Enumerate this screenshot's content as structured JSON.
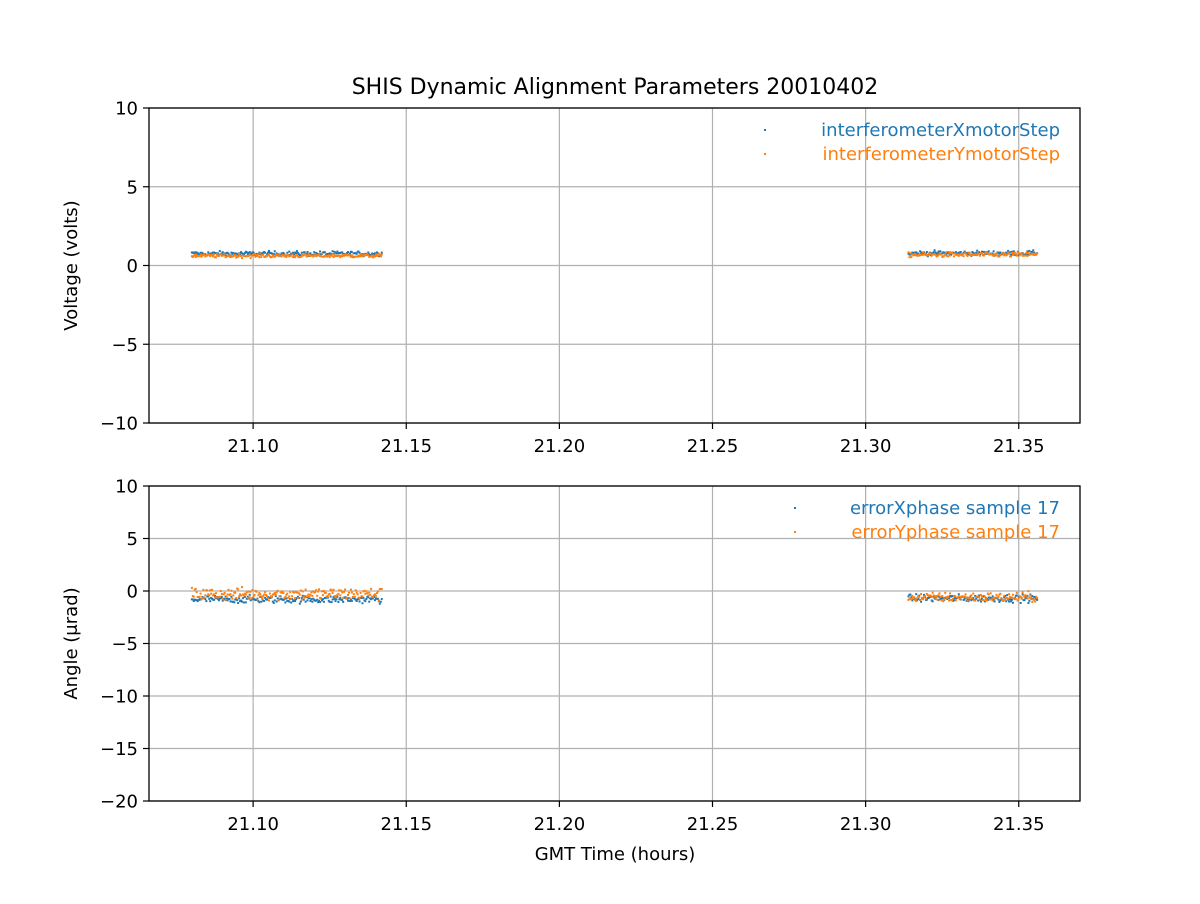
{
  "figure": {
    "title": "SHIS Dynamic Alignment Parameters 20010402"
  },
  "chart_data": [
    {
      "type": "scatter",
      "ylabel": "Voltage (volts)",
      "xlabel": "",
      "xlim": [
        21.066,
        21.37
      ],
      "ylim": [
        -10,
        10
      ],
      "xticks": [
        21.1,
        21.15,
        21.2,
        21.25,
        21.3,
        21.35
      ],
      "xtick_labels": [
        "21.10",
        "21.15",
        "21.20",
        "21.25",
        "21.30",
        "21.35"
      ],
      "yticks": [
        10,
        5,
        0,
        -5,
        -10
      ],
      "ytick_labels": [
        "10",
        "5",
        "0",
        "−5",
        "−10"
      ],
      "grid": true,
      "legend_position": "top-right",
      "series": [
        {
          "name": "interferometerXmotorStep",
          "color": "#1f77b4",
          "segments": [
            {
              "x_start": 21.08,
              "x_end": 21.142,
              "y_mean": 0.75,
              "y_spread": 0.15
            },
            {
              "x_start": 21.314,
              "x_end": 21.356,
              "y_mean": 0.78,
              "y_spread": 0.15
            }
          ]
        },
        {
          "name": "interferometerYmotorStep",
          "color": "#ff7f0e",
          "segments": [
            {
              "x_start": 21.08,
              "x_end": 21.142,
              "y_mean": 0.62,
              "y_spread": 0.12
            },
            {
              "x_start": 21.314,
              "x_end": 21.356,
              "y_mean": 0.68,
              "y_spread": 0.15
            }
          ]
        }
      ]
    },
    {
      "type": "scatter",
      "ylabel": "Angle (μrad)",
      "xlabel": "GMT Time (hours)",
      "xlim": [
        21.066,
        21.37
      ],
      "ylim": [
        -20,
        10
      ],
      "xticks": [
        21.1,
        21.15,
        21.2,
        21.25,
        21.3,
        21.35
      ],
      "xtick_labels": [
        "21.10",
        "21.15",
        "21.20",
        "21.25",
        "21.30",
        "21.35"
      ],
      "yticks": [
        10,
        5,
        0,
        -5,
        -10,
        -15,
        -20
      ],
      "ytick_labels": [
        "10",
        "5",
        "0",
        "−5",
        "−10",
        "−15",
        "−20"
      ],
      "grid": true,
      "legend_position": "top-right",
      "series": [
        {
          "name": "errorXphase sample 17",
          "color": "#1f77b4",
          "segments": [
            {
              "x_start": 21.08,
              "x_end": 21.142,
              "y_mean": -0.8,
              "y_spread": 0.35
            },
            {
              "x_start": 21.314,
              "x_end": 21.356,
              "y_mean": -0.7,
              "y_spread": 0.35
            }
          ]
        },
        {
          "name": "errorYphase sample 17",
          "color": "#ff7f0e",
          "segments": [
            {
              "x_start": 21.08,
              "x_end": 21.142,
              "y_mean": -0.3,
              "y_spread": 0.6
            },
            {
              "x_start": 21.314,
              "x_end": 21.356,
              "y_mean": -0.6,
              "y_spread": 0.45
            }
          ]
        }
      ]
    }
  ]
}
